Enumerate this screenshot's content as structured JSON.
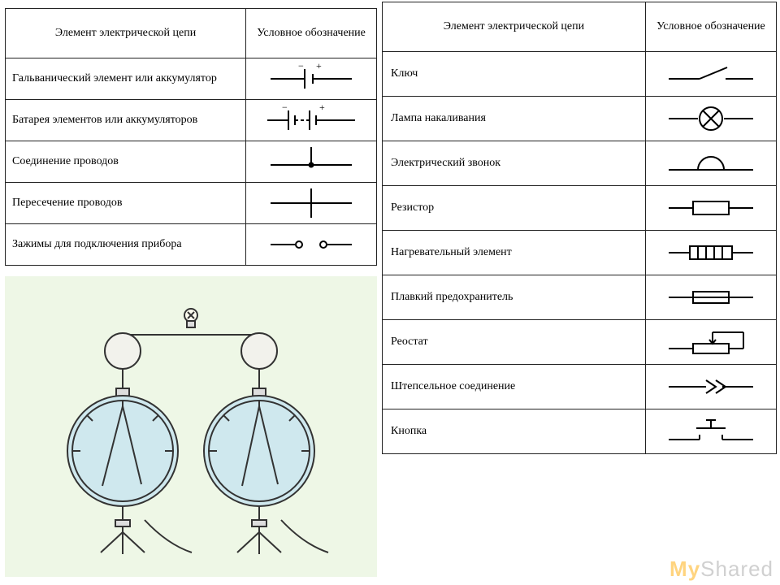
{
  "headers": {
    "element": "Элемент электрической цепи",
    "symbol": "Условное обозначение"
  },
  "left_rows": [
    {
      "label": "Гальванический элемент или аккумулятор",
      "symbol": "cell"
    },
    {
      "label": "Батарея элементов или аккумуляторов",
      "symbol": "battery"
    },
    {
      "label": "Соединение проводов",
      "symbol": "junction"
    },
    {
      "label": "Пересечение проводов",
      "symbol": "crossing"
    },
    {
      "label": "Зажимы для подключения прибора",
      "symbol": "terminals"
    }
  ],
  "right_rows": [
    {
      "label": "Ключ",
      "symbol": "switch"
    },
    {
      "label": "Лампа накаливания",
      "symbol": "lamp"
    },
    {
      "label": "Электрический звонок",
      "symbol": "bell"
    },
    {
      "label": "Резистор",
      "symbol": "resistor"
    },
    {
      "label": "Нагревательный элемент",
      "symbol": "heater"
    },
    {
      "label": "Плавкий предохранитель",
      "symbol": "fuse"
    },
    {
      "label": "Реостат",
      "symbol": "rheostat"
    },
    {
      "label": "Штепсельное соединение",
      "symbol": "plug"
    },
    {
      "label": "Кнопка",
      "symbol": "button"
    }
  ],
  "style": {
    "stroke": "#000000",
    "stroke_width": 2,
    "bg": "#ffffff",
    "panel_bg": "#eef7e6",
    "meter_fill": "#cfe8ee",
    "font_family": "Times New Roman",
    "label_fontsize": 14,
    "header_fontsize": 14
  },
  "watermark": {
    "prefix": "My",
    "suffix": "Shared"
  }
}
